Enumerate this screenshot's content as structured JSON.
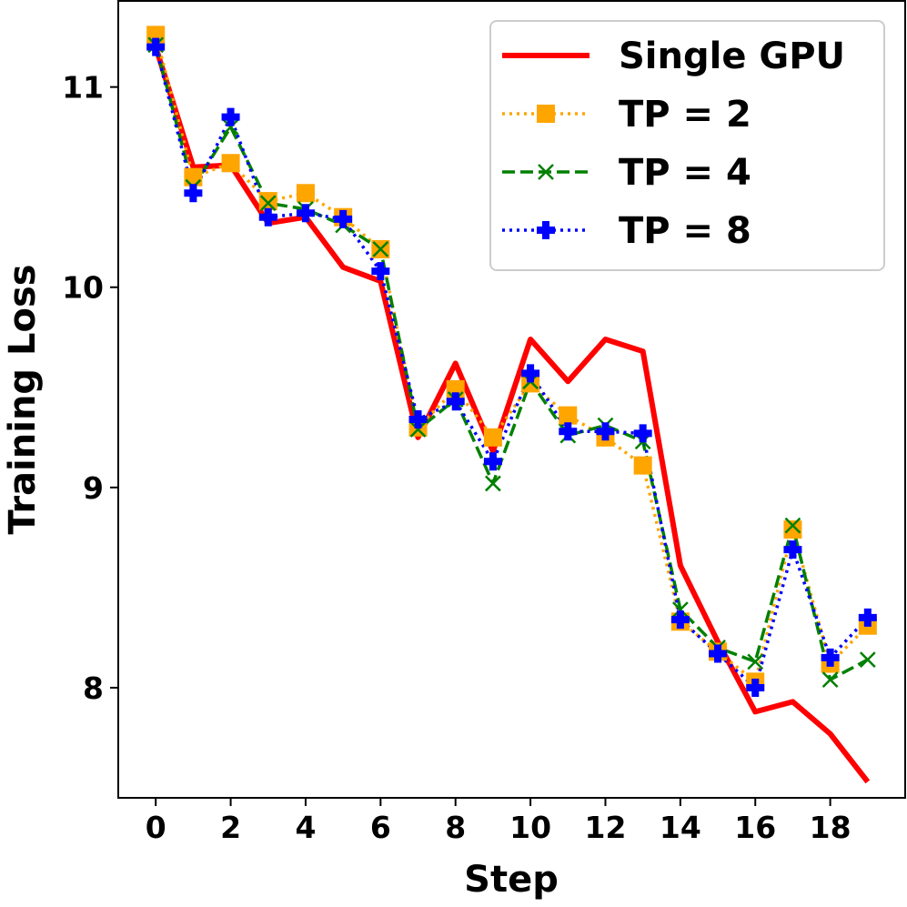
{
  "chart_data": {
    "type": "line",
    "title": "",
    "xlabel": "Step",
    "ylabel": "Training Loss",
    "xlim": [
      -1,
      20
    ],
    "ylim": [
      7.45,
      11.43
    ],
    "xticks": [
      0,
      2,
      4,
      6,
      8,
      10,
      12,
      14,
      16,
      18
    ],
    "yticks": [
      8,
      9,
      10,
      11
    ],
    "grid": false,
    "legend_position": "top-right",
    "x": [
      0,
      1,
      2,
      3,
      4,
      5,
      6,
      7,
      8,
      9,
      10,
      11,
      12,
      13,
      14,
      15,
      16,
      17,
      18,
      19
    ],
    "series": [
      {
        "name": "Single GPU",
        "color": "#ff0000",
        "style": "solid",
        "marker": "none",
        "values": [
          11.2,
          10.6,
          10.61,
          10.32,
          10.35,
          10.1,
          10.03,
          9.25,
          9.62,
          9.18,
          9.74,
          9.53,
          9.74,
          9.68,
          8.61,
          8.23,
          7.88,
          7.93,
          7.77,
          7.53
        ]
      },
      {
        "name": "TP = 2",
        "color": "#ffa500",
        "style": "dotted",
        "marker": "square",
        "values": [
          11.26,
          10.55,
          10.62,
          10.43,
          10.47,
          10.35,
          10.19,
          9.3,
          9.49,
          9.25,
          9.52,
          9.36,
          9.25,
          9.11,
          8.33,
          8.18,
          8.03,
          8.79,
          8.12,
          8.31
        ]
      },
      {
        "name": "TP = 4",
        "color": "#008000",
        "style": "dashed",
        "marker": "x",
        "values": [
          11.21,
          10.5,
          10.8,
          10.42,
          10.39,
          10.31,
          10.19,
          9.29,
          9.44,
          9.02,
          9.53,
          9.26,
          9.31,
          9.23,
          8.39,
          8.2,
          8.13,
          8.81,
          8.04,
          8.14
        ]
      },
      {
        "name": "TP = 8",
        "color": "#0000ff",
        "style": "dotted",
        "marker": "plus",
        "values": [
          11.2,
          10.47,
          10.85,
          10.35,
          10.37,
          10.34,
          10.08,
          9.34,
          9.43,
          9.13,
          9.57,
          9.28,
          9.28,
          9.27,
          8.34,
          8.17,
          8.0,
          8.69,
          8.15,
          8.35
        ]
      }
    ]
  }
}
